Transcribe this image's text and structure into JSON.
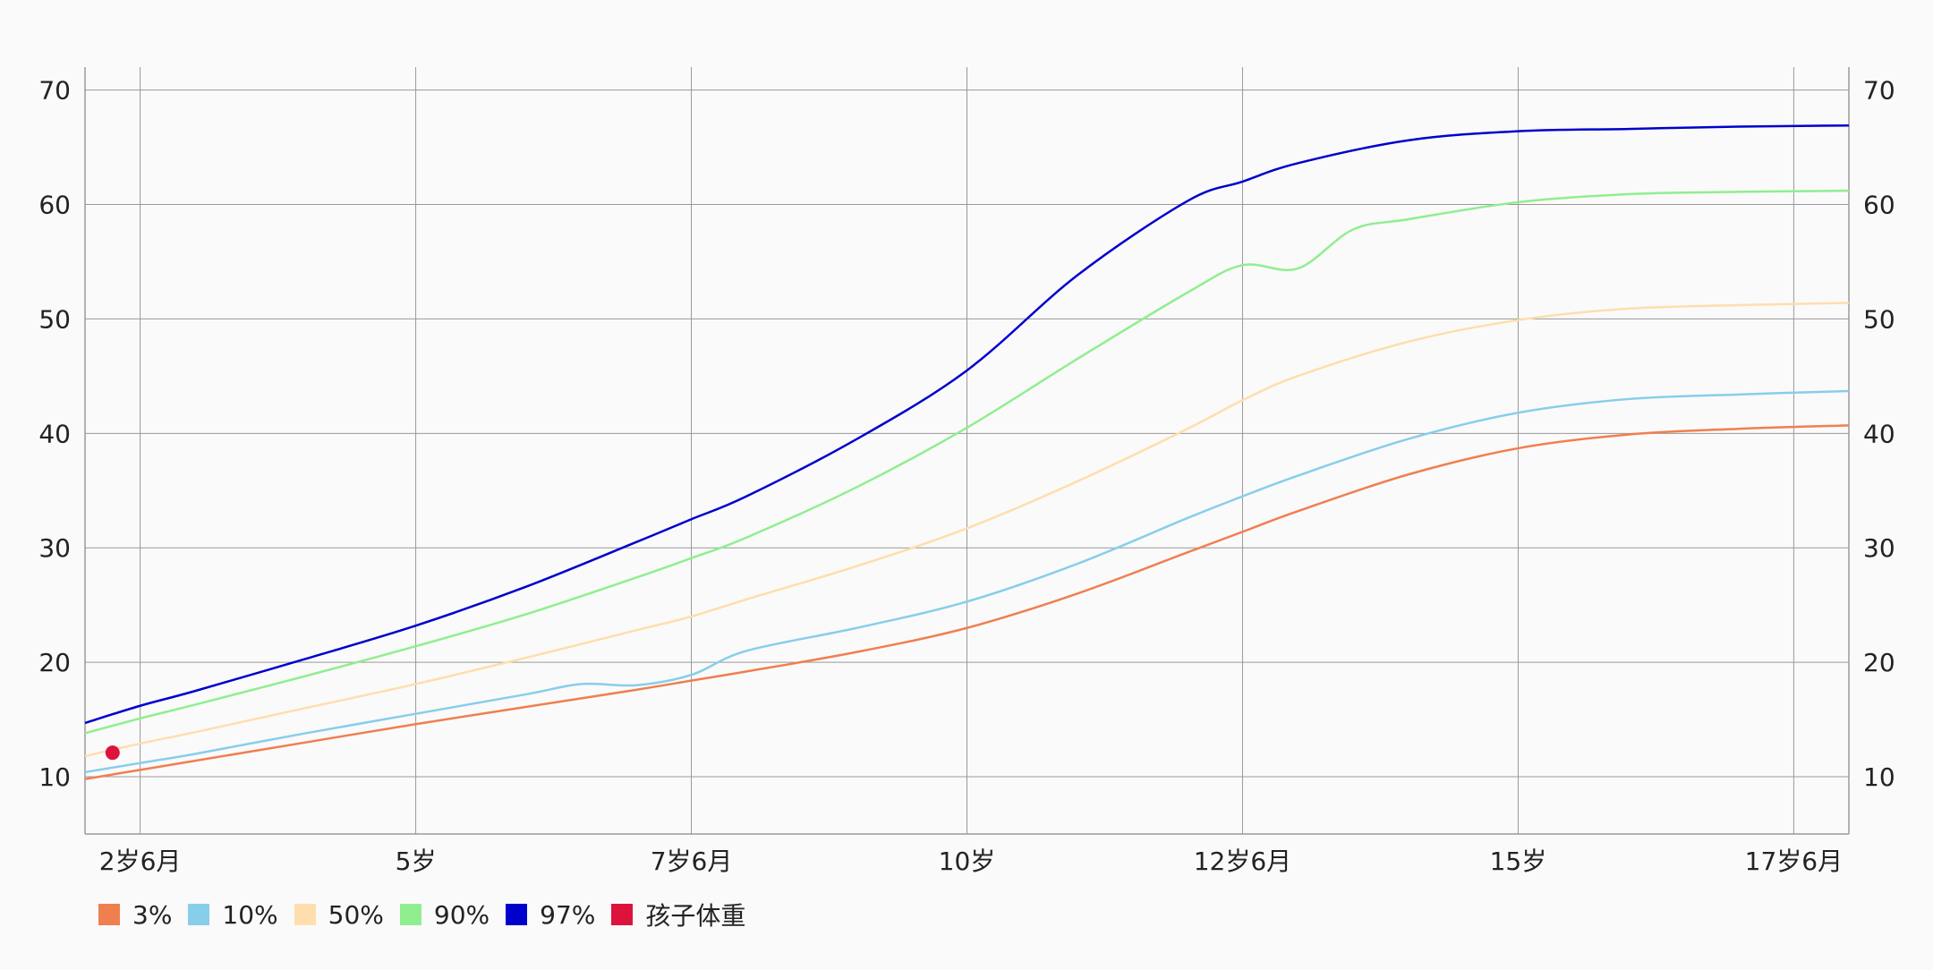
{
  "chart_data": {
    "type": "line",
    "x_tick_labels": [
      "2岁6月",
      "5岁",
      "7岁6月",
      "10岁",
      "12岁6月",
      "15岁",
      "17岁6月"
    ],
    "x_tick_values": [
      2.5,
      5,
      7.5,
      10,
      12.5,
      15,
      17.5
    ],
    "xlim": [
      2,
      18
    ],
    "ylim": [
      5,
      72
    ],
    "y_ticks": [
      10,
      20,
      30,
      40,
      50,
      60,
      70
    ],
    "grid": true,
    "legend_position": "bottom-left",
    "series": [
      {
        "name": "3%",
        "color": "#f07f50",
        "x": [
          2,
          2.5,
          3,
          4,
          5,
          6,
          7,
          7.5,
          8,
          9,
          10,
          11,
          12,
          12.5,
          13,
          14,
          15,
          16,
          17,
          18
        ],
        "y": [
          9.8,
          10.6,
          11.4,
          13.0,
          14.6,
          16.1,
          17.6,
          18.4,
          19.2,
          20.9,
          23.0,
          26.0,
          29.6,
          31.4,
          33.2,
          36.4,
          38.7,
          39.9,
          40.4,
          40.7
        ]
      },
      {
        "name": "10%",
        "color": "#87ceeb",
        "x": [
          2,
          2.5,
          3,
          4,
          5,
          6,
          6.5,
          7,
          7.5,
          8,
          9,
          10,
          11,
          12,
          12.5,
          13,
          14,
          15,
          16,
          17,
          18
        ],
        "y": [
          10.4,
          11.2,
          12.0,
          13.8,
          15.5,
          17.2,
          18.1,
          18.0,
          18.9,
          21.0,
          23.0,
          25.3,
          28.6,
          32.6,
          34.5,
          36.3,
          39.5,
          41.8,
          43.0,
          43.4,
          43.7
        ]
      },
      {
        "name": "50%",
        "color": "#ffdead",
        "x": [
          2,
          2.5,
          3,
          4,
          5,
          6,
          7,
          7.5,
          8,
          9,
          10,
          11,
          12,
          12.5,
          13,
          14,
          15,
          16,
          17,
          18
        ],
        "y": [
          11.8,
          12.9,
          13.9,
          16.0,
          18.1,
          20.4,
          22.8,
          24.0,
          25.5,
          28.4,
          31.7,
          35.8,
          40.4,
          42.9,
          45.0,
          48.0,
          49.9,
          50.9,
          51.2,
          51.4
        ]
      },
      {
        "name": "90%",
        "color": "#90ee90",
        "x": [
          2,
          2.5,
          3,
          4,
          5,
          6,
          7,
          7.5,
          8,
          9,
          10,
          11,
          12,
          12.5,
          13,
          13.5,
          14,
          15,
          16,
          17,
          18
        ],
        "y": [
          13.8,
          15.1,
          16.3,
          18.8,
          21.4,
          24.2,
          27.4,
          29.1,
          30.9,
          35.3,
          40.5,
          46.5,
          52.3,
          54.7,
          54.4,
          57.8,
          58.7,
          60.2,
          60.9,
          61.1,
          61.2
        ]
      },
      {
        "name": "97%",
        "color": "#0000cd",
        "x": [
          2,
          2.5,
          3,
          4,
          5,
          6,
          7,
          7.5,
          8,
          9,
          10,
          11,
          12,
          12.5,
          13,
          14,
          15,
          16,
          17,
          18
        ],
        "y": [
          14.7,
          16.2,
          17.5,
          20.3,
          23.2,
          26.6,
          30.5,
          32.5,
          34.5,
          39.5,
          45.5,
          53.8,
          60.3,
          62.0,
          63.6,
          65.6,
          66.4,
          66.6,
          66.8,
          66.9
        ]
      }
    ],
    "points": [
      {
        "name": "孩子体重",
        "color": "#dc143c",
        "x": [
          2.25
        ],
        "y": [
          12.1
        ]
      }
    ]
  }
}
